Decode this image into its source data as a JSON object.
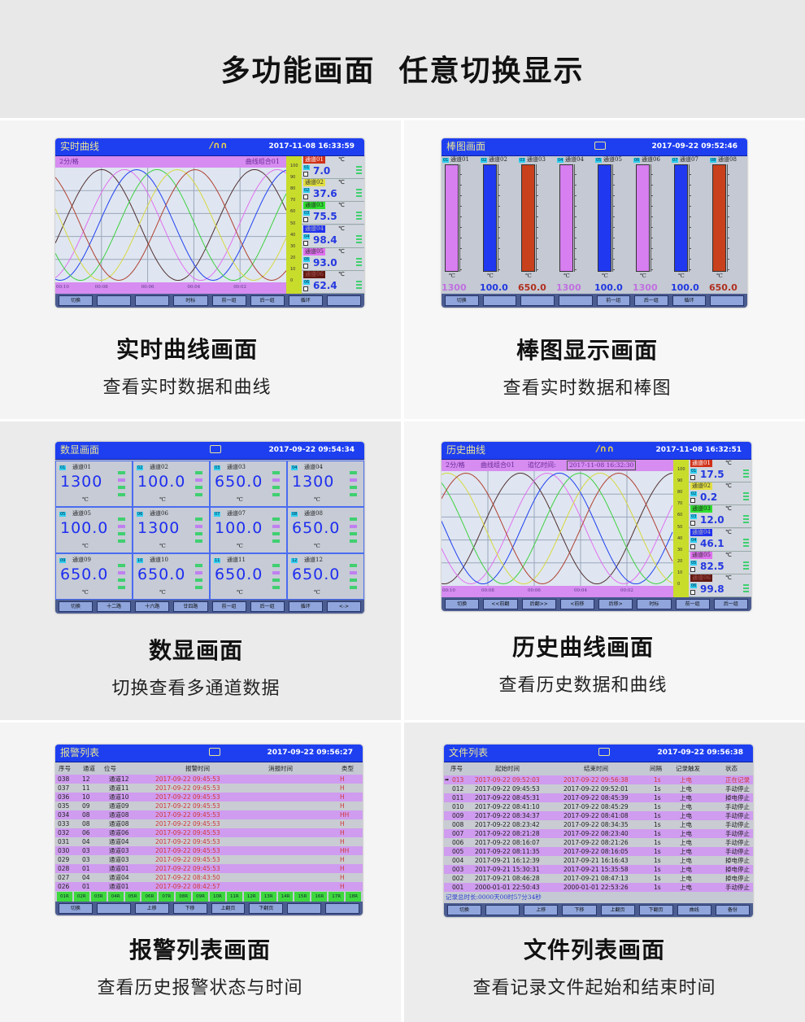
{
  "page_title": "多功能画面  任意切换显示",
  "realtime": {
    "title": "实时曲线",
    "datetime": "2017-11-08 16:33:59",
    "icon": "wave-logo-icon",
    "scale": "2分/格",
    "group": "曲线组合01",
    "y_ticks": [
      "100",
      "90",
      "80",
      "70",
      "60",
      "50",
      "40",
      "30",
      "20",
      "10",
      "0"
    ],
    "x_ticks": [
      "00:10",
      "00:08",
      "00:06",
      "00:04",
      "00:02"
    ],
    "channels": [
      {
        "label": "通道01",
        "num": "01",
        "value": "7.0",
        "unit": "℃",
        "color": "#d03018",
        "text": "#fff"
      },
      {
        "label": "通道02",
        "num": "02",
        "value": "37.6",
        "unit": "℃",
        "color": "#e2e040",
        "text": "#333"
      },
      {
        "label": "通道03",
        "num": "03",
        "value": "75.5",
        "unit": "℃",
        "color": "#30e030",
        "text": "#222"
      },
      {
        "label": "通道04",
        "num": "04",
        "value": "98.4",
        "unit": "℃",
        "color": "#2030f0",
        "text": "#bbb"
      },
      {
        "label": "通道05",
        "num": "05",
        "value": "93.0",
        "unit": "℃",
        "color": "#e070f0",
        "text": "#333"
      },
      {
        "label": "通道06",
        "num": "06",
        "value": "62.4",
        "unit": "℃",
        "color": "#601810",
        "text": "#a55"
      }
    ],
    "curve_colors": [
      "#503030",
      "#e070f0",
      "#2040f0",
      "#40d040",
      "#d8d840",
      "#b04030"
    ],
    "buttons": [
      "切换",
      "",
      "",
      "时标",
      "前一组",
      "后一组",
      "循环",
      ""
    ],
    "caption": {
      "title": "实时曲线画面",
      "subtitle": "查看实时数据和曲线"
    }
  },
  "bar": {
    "title": "棒图画面",
    "datetime": "2017-09-22 09:52:46",
    "icon": "keyboard-icon",
    "bars": [
      {
        "num": "01",
        "label": "通道01",
        "unit": "℃",
        "value": "1300",
        "color": "#d77ef0",
        "text": "#c070e0"
      },
      {
        "num": "02",
        "label": "通道02",
        "unit": "℃",
        "value": "100.0",
        "color": "#2038f0",
        "text": "#2038e0"
      },
      {
        "num": "03",
        "label": "通道03",
        "unit": "℃",
        "value": "650.0",
        "color": "#c8401c",
        "text": "#b03020"
      },
      {
        "num": "04",
        "label": "通道04",
        "unit": "℃",
        "value": "1300",
        "color": "#d77ef0",
        "text": "#c070e0"
      },
      {
        "num": "05",
        "label": "通道05",
        "unit": "℃",
        "value": "100.0",
        "color": "#2038f0",
        "text": "#2038e0"
      },
      {
        "num": "06",
        "label": "通道06",
        "unit": "℃",
        "value": "1300",
        "color": "#d77ef0",
        "text": "#c070e0"
      },
      {
        "num": "07",
        "label": "通道07",
        "unit": "℃",
        "value": "100.0",
        "color": "#2038f0",
        "text": "#2038e0"
      },
      {
        "num": "08",
        "label": "通道08",
        "unit": "℃",
        "value": "650.0",
        "color": "#c8401c",
        "text": "#b03020"
      }
    ],
    "buttons": [
      "切换",
      "",
      "",
      "",
      "前一组",
      "后一组",
      "循环",
      ""
    ],
    "caption": {
      "title": "棒图显示画面",
      "subtitle": "查看实时数据和棒图"
    }
  },
  "digital": {
    "title": "数显画面",
    "datetime": "2017-09-22 09:54:34",
    "icon": "keyboard-icon",
    "cells": [
      {
        "num": "01",
        "label": "通道01",
        "value": "1300",
        "unit": "℃"
      },
      {
        "num": "02",
        "label": "通道02",
        "value": "100.0",
        "unit": "℃"
      },
      {
        "num": "03",
        "label": "通道03",
        "value": "650.0",
        "unit": "℃"
      },
      {
        "num": "04",
        "label": "通道04",
        "value": "1300",
        "unit": "℃"
      },
      {
        "num": "05",
        "label": "通道05",
        "value": "100.0",
        "unit": "℃"
      },
      {
        "num": "06",
        "label": "通道06",
        "value": "1300",
        "unit": "℃"
      },
      {
        "num": "07",
        "label": "通道07",
        "value": "100.0",
        "unit": "℃"
      },
      {
        "num": "08",
        "label": "通道08",
        "value": "650.0",
        "unit": "℃"
      },
      {
        "num": "09",
        "label": "通道09",
        "value": "650.0",
        "unit": "℃"
      },
      {
        "num": "10",
        "label": "通道10",
        "value": "650.0",
        "unit": "℃"
      },
      {
        "num": "11",
        "label": "通道11",
        "value": "650.0",
        "unit": "℃"
      },
      {
        "num": "12",
        "label": "通道12",
        "value": "650.0",
        "unit": "℃"
      }
    ],
    "buttons": [
      "切换",
      "十二路",
      "十六路",
      "廿四路",
      "前一组",
      "后一组",
      "循环",
      "<->"
    ],
    "caption": {
      "title": "数显画面",
      "subtitle": "切换查看多通道数据"
    }
  },
  "history": {
    "title": "历史曲线",
    "datetime": "2017-11-08 16:32:51",
    "icon": "wave-logo-icon",
    "scale": "2分/格",
    "group": "曲线组合01",
    "recall_label": "追忆时间:",
    "recall_time": "2017-11-08  16:32:30",
    "y_ticks": [
      "100",
      "90",
      "80",
      "70",
      "60",
      "50",
      "40",
      "30",
      "20",
      "10",
      "0"
    ],
    "x_ticks": [
      "00:10",
      "00:08",
      "00:06",
      "00:04",
      "00:02"
    ],
    "channels": [
      {
        "label": "通道01",
        "num": "01",
        "value": "17.5",
        "unit": "℃",
        "color": "#d03018",
        "text": "#fff"
      },
      {
        "label": "通道02",
        "num": "02",
        "value": "0.2",
        "unit": "℃",
        "color": "#e2e040",
        "text": "#333"
      },
      {
        "label": "通道03",
        "num": "03",
        "value": "12.0",
        "unit": "℃",
        "color": "#30e030",
        "text": "#222"
      },
      {
        "label": "通道04",
        "num": "04",
        "value": "46.1",
        "unit": "℃",
        "color": "#2030f0",
        "text": "#bbb"
      },
      {
        "label": "通道05",
        "num": "05",
        "value": "82.5",
        "unit": "℃",
        "color": "#e070f0",
        "text": "#333"
      },
      {
        "label": "通道06",
        "num": "06",
        "value": "99.8",
        "unit": "℃",
        "color": "#601810",
        "text": "#a55"
      }
    ],
    "buttons": [
      "切换",
      "<<前翻",
      "后翻>>",
      "<前移",
      "后移>",
      "时标",
      "前一组",
      "后一组"
    ],
    "caption": {
      "title": "历史曲线画面",
      "subtitle": "查看历史数据和曲线"
    }
  },
  "alarm": {
    "title": "报警列表",
    "datetime": "2017-09-22 09:56:27",
    "icon": "keyboard-icon",
    "headers": [
      "序号",
      "通道",
      "位号",
      "报警时间",
      "消报时间",
      "类型"
    ],
    "rows": [
      [
        "038",
        "12",
        "通道12",
        "2017-09-22 09:45:53",
        "",
        "H"
      ],
      [
        "037",
        "11",
        "通道11",
        "2017-09-22 09:45:53",
        "",
        "H"
      ],
      [
        "036",
        "10",
        "通道10",
        "2017-09-22 09:45:53",
        "",
        "H"
      ],
      [
        "035",
        "09",
        "通道09",
        "2017-09-22 09:45:53",
        "",
        "H"
      ],
      [
        "034",
        "08",
        "通道08",
        "2017-09-22 09:45:53",
        "",
        "HH"
      ],
      [
        "033",
        "08",
        "通道08",
        "2017-09-22 09:45:53",
        "",
        "H"
      ],
      [
        "032",
        "06",
        "通道06",
        "2017-09-22 09:45:53",
        "",
        "H"
      ],
      [
        "031",
        "04",
        "通道04",
        "2017-09-22 09:45:53",
        "",
        "H"
      ],
      [
        "030",
        "03",
        "通道03",
        "2017-09-22 09:45:53",
        "",
        "HH"
      ],
      [
        "029",
        "03",
        "通道03",
        "2017-09-22 09:45:53",
        "",
        "H"
      ],
      [
        "028",
        "01",
        "通道01",
        "2017-09-22 09:45:53",
        "",
        "H"
      ],
      [
        "027",
        "04",
        "通道04",
        "2017-09-22 08:43:50",
        "",
        "H"
      ],
      [
        "026",
        "01",
        "通道01",
        "2017-09-22 08:42:57",
        "",
        "H"
      ]
    ],
    "relays": [
      "01R",
      "02R",
      "03R",
      "04R",
      "05R",
      "06R",
      "07R",
      "08R",
      "09R",
      "10R",
      "11R",
      "12R",
      "13R",
      "14R",
      "15R",
      "16R",
      "17R",
      "18R"
    ],
    "buttons": [
      "切换",
      "",
      "上移",
      "下移",
      "上翻页",
      "下翻页",
      "",
      ""
    ],
    "caption": {
      "title": "报警列表画面",
      "subtitle": "查看历史报警状态与时间"
    }
  },
  "files": {
    "title": "文件列表",
    "datetime": "2017-09-22 09:56:38",
    "icon": "keyboard-icon",
    "headers": [
      "序号",
      "起始时间",
      "结束时间",
      "间隔",
      "记录触发",
      "状态"
    ],
    "rows": [
      [
        "013",
        "2017-09-22 09:52:03",
        "2017-09-22 09:56:38",
        "1s",
        "上电",
        "正在记录"
      ],
      [
        "012",
        "2017-09-22 09:45:53",
        "2017-09-22 09:52:01",
        "1s",
        "上电",
        "手动停止"
      ],
      [
        "011",
        "2017-09-22 08:45:31",
        "2017-09-22 08:45:39",
        "1s",
        "上电",
        "掉电停止"
      ],
      [
        "010",
        "2017-09-22 08:41:10",
        "2017-09-22 08:45:29",
        "1s",
        "上电",
        "手动停止"
      ],
      [
        "009",
        "2017-09-22 08:34:37",
        "2017-09-22 08:41:08",
        "1s",
        "上电",
        "手动停止"
      ],
      [
        "008",
        "2017-09-22 08:23:42",
        "2017-09-22 08:34:35",
        "1s",
        "上电",
        "手动停止"
      ],
      [
        "007",
        "2017-09-22 08:21:28",
        "2017-09-22 08:23:40",
        "1s",
        "上电",
        "手动停止"
      ],
      [
        "006",
        "2017-09-22 08:16:07",
        "2017-09-22 08:21:26",
        "1s",
        "上电",
        "手动停止"
      ],
      [
        "005",
        "2017-09-22 08:11:35",
        "2017-09-22 08:16:05",
        "1s",
        "上电",
        "手动停止"
      ],
      [
        "004",
        "2017-09-21 16:12:39",
        "2017-09-21 16:16:43",
        "1s",
        "上电",
        "掉电停止"
      ],
      [
        "003",
        "2017-09-21 15:30:31",
        "2017-09-21 15:35:58",
        "1s",
        "上电",
        "掉电停止"
      ],
      [
        "002",
        "2017-09-21 08:46:28",
        "2017-09-21 08:47:13",
        "1s",
        "上电",
        "掉电停止"
      ],
      [
        "001",
        "2000-01-01 22:50:43",
        "2000-01-01 22:53:26",
        "1s",
        "上电",
        "手动停止"
      ]
    ],
    "footer": "记录总时长:0000天00时57分34秒",
    "buttons": [
      "切换",
      "",
      "上移",
      "下移",
      "上翻页",
      "下翻页",
      "曲线",
      "备份"
    ],
    "caption": {
      "title": "文件列表画面",
      "subtitle": "查看记录文件起始和结束时间"
    }
  }
}
